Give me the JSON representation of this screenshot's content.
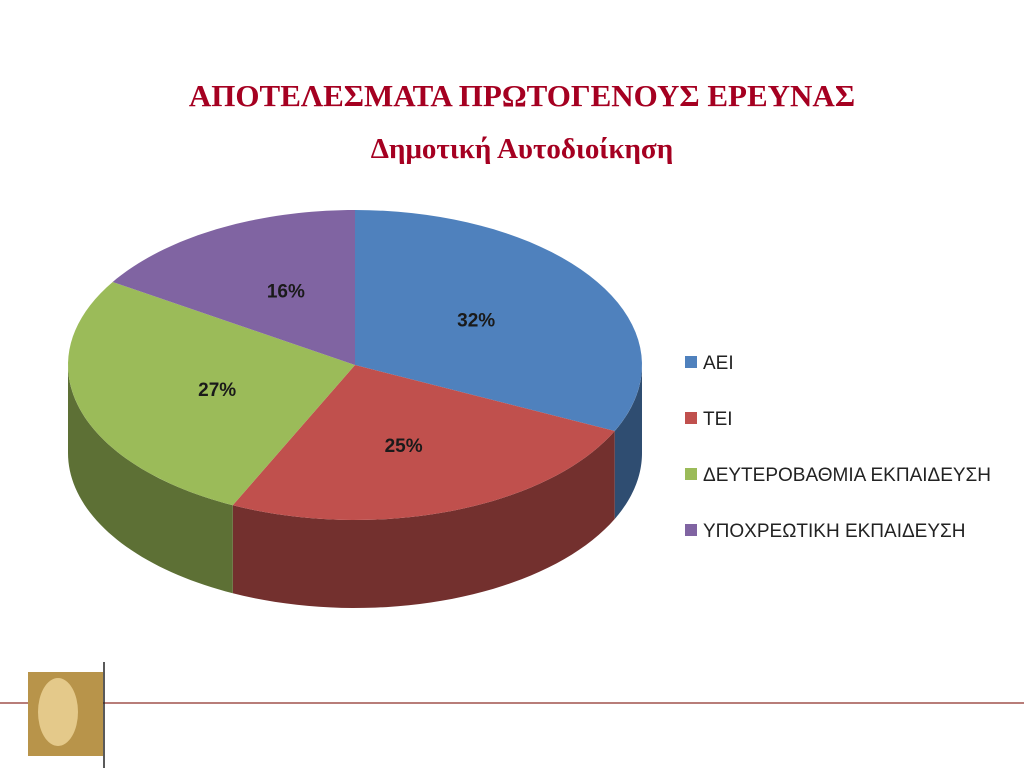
{
  "chart_data": {
    "type": "pie",
    "title": "ΑΠΟΤΕΛΕΣΜΑΤΑ ΠΡΩΤΟΓΕΝΟΥΣ ΕΡΕΥΝΑΣ",
    "subtitle": "Δημοτική Αυτοδιοίκηση",
    "categories": [
      "ΑΕΙ",
      "ΤΕΙ",
      "ΔΕΥΤΕΡΟΒΑΘΜΙΑ ΕΚΠΑΙΔΕΥΣΗ",
      "ΥΠΟΧΡΕΩΤΙΚΗ ΕΚΠΑΙΔΕΥΣΗ"
    ],
    "values": [
      32,
      25,
      27,
      16
    ],
    "value_labels": [
      "32%",
      "25%",
      "27%",
      "16%"
    ],
    "colors": [
      "#4f81bd",
      "#c0504d",
      "#9bbb59",
      "#8064a2"
    ],
    "legend": "right"
  }
}
